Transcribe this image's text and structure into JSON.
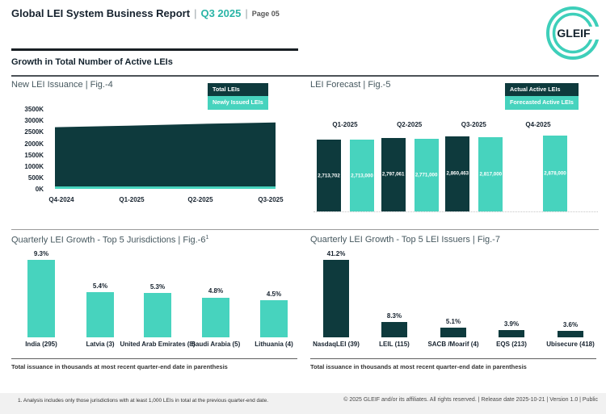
{
  "header": {
    "title": "Global LEI System Business Report",
    "separator": "|",
    "period": "Q3 2025",
    "page": "Page 05",
    "logo_text": "GLEIF"
  },
  "section": {
    "heading": "Growth in Total Number of Active LEIs"
  },
  "colors": {
    "dark_teal": "#0e3a3d",
    "mint_teal": "#47d3be",
    "brand_teal": "#3ecfba",
    "accent_text_teal": "#2ab4a6",
    "heading_dark": "#16222e"
  },
  "chart_data": [
    {
      "id": "fig4",
      "type": "area",
      "title": "New LEI Issuance | Fig.-4",
      "legend": [
        "Total LEIs",
        "Newly Issued LEIs"
      ],
      "legend_position": "top-right",
      "x": [
        "Q4-2024",
        "Q1-2025",
        "Q2-2025",
        "Q3-2025"
      ],
      "series": [
        {
          "name": "Total LEIs",
          "values": [
            2650000,
            2715000,
            2795000,
            2860000
          ]
        },
        {
          "name": "Newly Issued LEIs",
          "values": [
            100000,
            100000,
            100000,
            100000
          ]
        }
      ],
      "ylim": [
        0,
        3500000
      ],
      "y_tick_labels": [
        "3500K",
        "3000K",
        "2500K",
        "2000K",
        "1500K",
        "1000K",
        "500K",
        "0K"
      ],
      "grid": false
    },
    {
      "id": "fig5",
      "type": "bar",
      "title": "LEI Forecast | Fig.-5",
      "legend": [
        "Actual Active LEIs",
        "Forecasted Active LEIs"
      ],
      "legend_position": "top-right",
      "categories": [
        "Q1-2025",
        "Q2-2025",
        "Q3-2025",
        "Q4-2025"
      ],
      "series": [
        {
          "name": "Actual Active LEIs",
          "values": [
            2713702,
            2797061,
            2860463,
            null
          ],
          "labels": [
            "2,713,702",
            "2,797,061",
            "2,860,463",
            null
          ]
        },
        {
          "name": "Forecasted Active LEIs",
          "values": [
            2713000,
            2771000,
            2817000,
            2878000
          ],
          "labels": [
            "2,713,000",
            "2,771,000",
            "2,817,000",
            "2,878,000"
          ]
        }
      ],
      "grid": false
    },
    {
      "id": "fig6",
      "type": "bar",
      "title": "Quarterly LEI Growth - Top 5 Jurisdictions | Fig.-6",
      "title_superscript": "1",
      "categories": [
        "India (295)",
        "Latvia (3)",
        "United Arab Emirates (8)",
        "Saudi Arabia (5)",
        "Lithuania (4)"
      ],
      "values": [
        9.3,
        5.4,
        5.3,
        4.8,
        4.5
      ],
      "labels": [
        "9.3%",
        "5.4%",
        "5.3%",
        "4.8%",
        "4.5%"
      ],
      "note": "Total issuance in thousands at most recent quarter-end date in parenthesis",
      "grid": false
    },
    {
      "id": "fig7",
      "type": "bar",
      "title": "Quarterly LEI Growth - Top 5 LEI Issuers | Fig.-7",
      "categories": [
        "NasdaqLEI (39)",
        "LEIL (115)",
        "SACB /Moarif (4)",
        "EQS (213)",
        "Ubisecure (418)"
      ],
      "values": [
        41.2,
        8.3,
        5.1,
        3.9,
        3.6
      ],
      "labels": [
        "41.2%",
        "8.3%",
        "5.1%",
        "3.9%",
        "3.6%"
      ],
      "note": "Total issuance in thousands at most recent quarter-end date in parenthesis",
      "grid": false
    }
  ],
  "footer": {
    "footnote": "1. Analysis includes only those jurisdictions with at least 1,000 LEIs in total at the previous quarter-end date.",
    "copyright": "© 2025 GLEIF and/or its affiliates. All rights reserved. | Release date 2025-10-21 | Version 1.0 | Public"
  }
}
